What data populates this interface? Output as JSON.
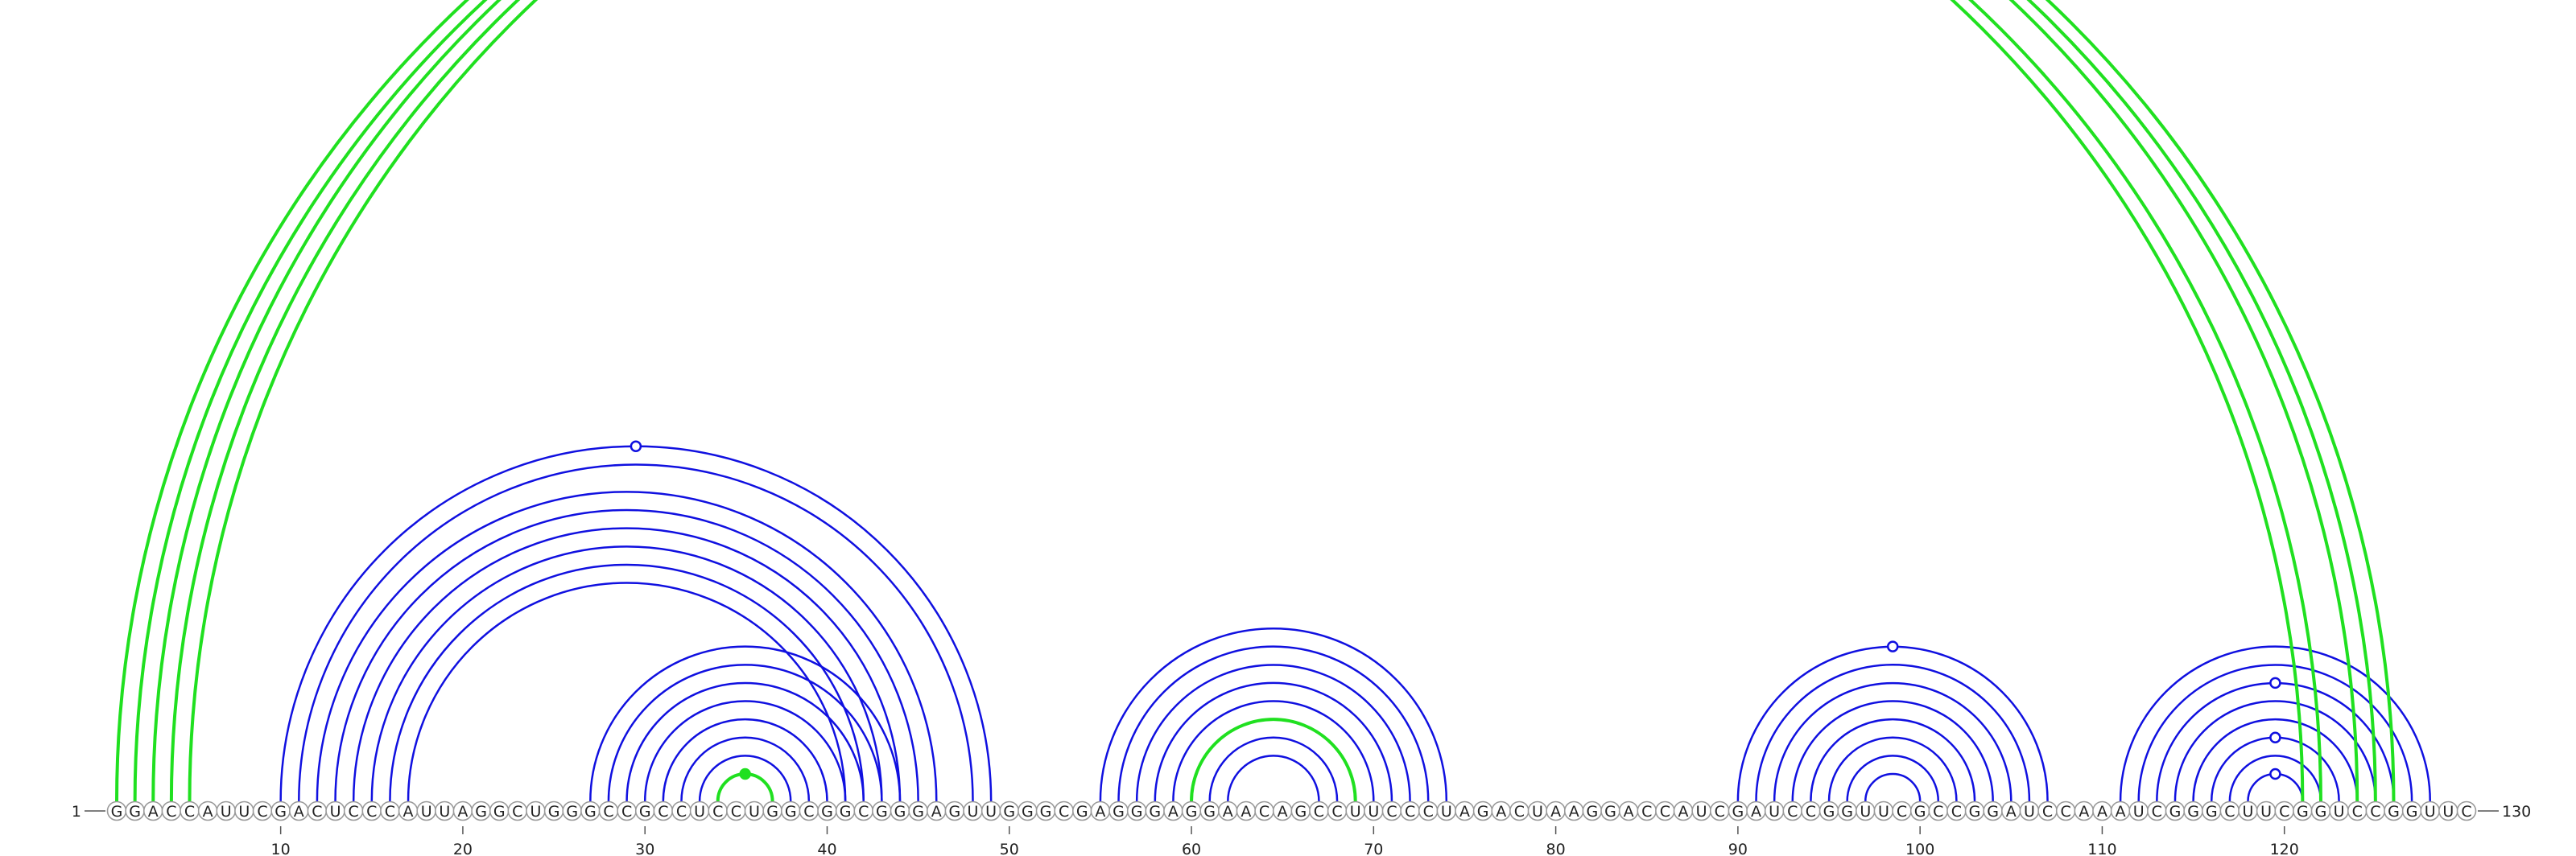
{
  "sequence": "GGACCAUUCGACUCCCAUUAGGCUGGGCCGCCUCCUGGCGGCGGGAGUUGGGCGAGGGAGGAACAGCCUUCCCUAGACUAAGGACCAUCGAUCCGGUUCGCCGGAUCCAAAUCGGGCUUCGGUCCGGUUC",
  "start_label": "1",
  "end_label": "130",
  "ticks": [
    10,
    20,
    30,
    40,
    50,
    60,
    70,
    80,
    90,
    100,
    110,
    120
  ],
  "colors": {
    "blue": "#1010e0",
    "green": "#20e020"
  },
  "arcs": [
    {
      "color": "blue",
      "pairs": [
        [
          10,
          49
        ],
        [
          11,
          48
        ],
        [
          12,
          46
        ],
        [
          13,
          45
        ],
        [
          14,
          44
        ],
        [
          15,
          43
        ],
        [
          16,
          42
        ],
        [
          17,
          41
        ]
      ],
      "marker": {
        "type": "open",
        "position": 30
      }
    },
    {
      "color": "blue",
      "pairs": [
        [
          27,
          44
        ],
        [
          28,
          43
        ],
        [
          29,
          42
        ],
        [
          30,
          41
        ],
        [
          31,
          40
        ],
        [
          32,
          39
        ],
        [
          33,
          38
        ],
        [
          34,
          37
        ]
      ]
    },
    {
      "color": "green",
      "pairs": [
        [
          34,
          37
        ]
      ],
      "marker": {
        "type": "filled",
        "position": 35
      }
    },
    {
      "color": "blue",
      "pairs": [
        [
          55,
          74
        ],
        [
          56,
          73
        ],
        [
          57,
          72
        ],
        [
          58,
          71
        ],
        [
          59,
          70
        ],
        [
          60,
          69
        ],
        [
          61,
          68
        ],
        [
          62,
          67
        ]
      ]
    },
    {
      "color": "green",
      "pairs": [
        [
          60,
          69
        ]
      ]
    },
    {
      "color": "blue",
      "pairs": [
        [
          90,
          107
        ],
        [
          91,
          106
        ],
        [
          92,
          105
        ],
        [
          93,
          104
        ],
        [
          94,
          103
        ],
        [
          95,
          102
        ],
        [
          96,
          101
        ],
        [
          97,
          100
        ]
      ],
      "marker": {
        "type": "open",
        "position": 98.5
      }
    },
    {
      "color": "blue",
      "pairs": [
        [
          111,
          128
        ],
        [
          112,
          127
        ],
        [
          113,
          126
        ],
        [
          114,
          125
        ],
        [
          115,
          124
        ],
        [
          116,
          123
        ],
        [
          117,
          122
        ],
        [
          118,
          121
        ]
      ],
      "markers": [
        {
          "type": "open",
          "position": 120,
          "level": 1
        },
        {
          "type": "open",
          "position": 120,
          "level": 3
        },
        {
          "type": "open",
          "position": 120,
          "level": 6
        }
      ]
    },
    {
      "color": "green",
      "pairs": [
        [
          1,
          121
        ],
        [
          2,
          122
        ],
        [
          3,
          124
        ],
        [
          4,
          125
        ],
        [
          5,
          126
        ]
      ]
    }
  ]
}
